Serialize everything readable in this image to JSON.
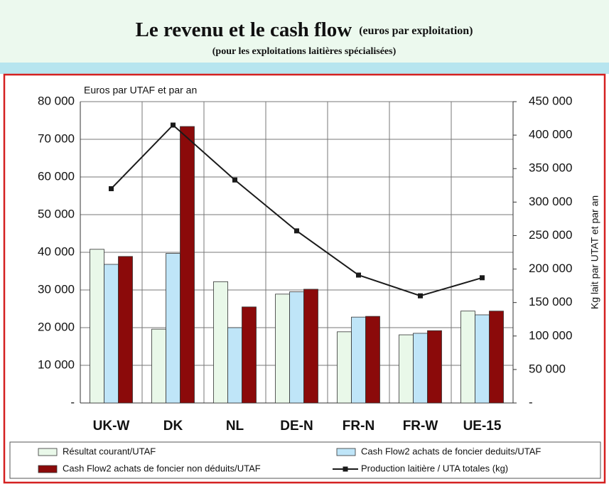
{
  "chart_data": {
    "type": "bar",
    "title": "Le revenu et le cash flow",
    "title_note": "(euros par exploitation)",
    "subtitle": "(pour les exploitations laitières spécialisées)",
    "y_label": "Euros par UTAF et par an",
    "y2_label": "Kg lait par UTAT et par an",
    "categories": [
      "UK-W",
      "DK",
      "NL",
      "DE-N",
      "FR-N",
      "FR-W",
      "UE-15"
    ],
    "series": [
      {
        "name": "Résultat courant/UTAF",
        "type": "bar",
        "color": "#e9f8e9",
        "values": [
          40800,
          19600,
          32200,
          28900,
          18900,
          18100,
          24400
        ]
      },
      {
        "name": "Cash Flow2 achats de foncier deduits/UTAF",
        "type": "bar",
        "color": "#bfe5f8",
        "values": [
          36800,
          39700,
          20000,
          29500,
          22800,
          18500,
          23400
        ]
      },
      {
        "name": "Cash Flow2 achats de foncier non déduits/UTAF",
        "type": "bar",
        "color": "#8b0a0a",
        "values": [
          38900,
          73400,
          25500,
          30200,
          23000,
          19200,
          24400
        ]
      },
      {
        "name": "Production laitière / UTA totales (kg)",
        "type": "line",
        "axis": "y2",
        "color": "#1a1a1a",
        "values": [
          320000,
          415000,
          333000,
          257000,
          191000,
          160000,
          187000
        ]
      }
    ],
    "ylim": [
      0,
      80000
    ],
    "yticks": [
      {
        "value": 0,
        "label": "-"
      },
      {
        "value": 10000,
        "label": "10 000"
      },
      {
        "value": 20000,
        "label": "20 000"
      },
      {
        "value": 30000,
        "label": "30 000"
      },
      {
        "value": 40000,
        "label": "40 000"
      },
      {
        "value": 50000,
        "label": "50 000"
      },
      {
        "value": 60000,
        "label": "60 000"
      },
      {
        "value": 70000,
        "label": "70 000"
      },
      {
        "value": 80000,
        "label": "80 000"
      }
    ],
    "y2lim": [
      0,
      450000
    ],
    "y2ticks": [
      {
        "value": 0,
        "label": "-"
      },
      {
        "value": 50000,
        "label": "50 000"
      },
      {
        "value": 100000,
        "label": "100 000"
      },
      {
        "value": 150000,
        "label": "150 000"
      },
      {
        "value": 200000,
        "label": "200 000"
      },
      {
        "value": 250000,
        "label": "250 000"
      },
      {
        "value": 300000,
        "label": "300 000"
      },
      {
        "value": 350000,
        "label": "350 000"
      },
      {
        "value": 400000,
        "label": "400 000"
      },
      {
        "value": 450000,
        "label": "450 000"
      }
    ],
    "grid": true
  }
}
